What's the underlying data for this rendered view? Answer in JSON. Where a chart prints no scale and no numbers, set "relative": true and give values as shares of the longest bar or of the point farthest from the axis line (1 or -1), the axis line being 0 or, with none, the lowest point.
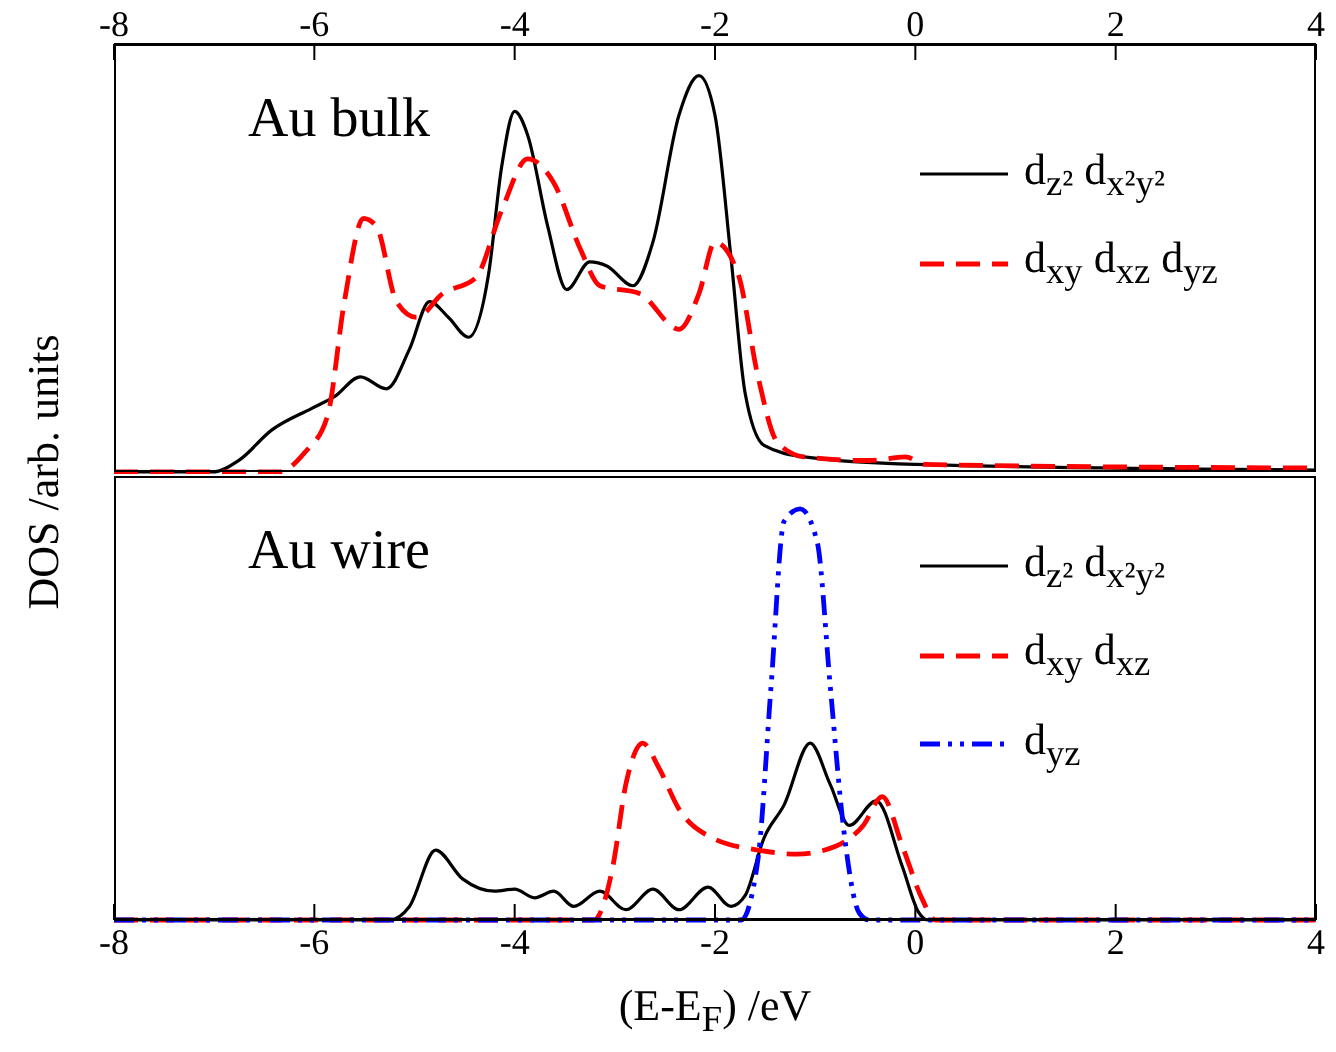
{
  "chart_data": [
    {
      "type": "line",
      "relative": true,
      "xlim": [
        -8,
        4
      ],
      "xticks": [
        -8,
        -6,
        -4,
        -2,
        0,
        2,
        4
      ],
      "tick_labels": "x",
      "ylabel": "DOS /arb. units",
      "legend": "top right",
      "grid": false,
      "marker": "none",
      "annotations": [
        "Au bulk"
      ],
      "series": [
        {
          "name": "d$_{z²}$ d$_{x²y²}$",
          "color": "#000000",
          "line_style": "solid",
          "x": [
            -8,
            -7.02,
            -6.75,
            -6.43,
            -6.03,
            -5.8,
            -5.54,
            -5.28,
            -5.05,
            -4.85,
            -4.66,
            -4.46,
            -4.26,
            -4.13,
            -4.0,
            -3.87,
            -3.67,
            -3.48,
            -3.25,
            -3.08,
            -2.82,
            -2.62,
            -2.36,
            -2.16,
            -2.0,
            -1.84,
            -1.7,
            -1.51,
            -1.11,
            0,
            4
          ],
          "values": [
            0,
            0,
            0.03,
            0.105,
            0.16,
            0.19,
            0.24,
            0.21,
            0.31,
            0.43,
            0.39,
            0.34,
            0.5,
            0.77,
            0.91,
            0.85,
            0.62,
            0.46,
            0.53,
            0.52,
            0.47,
            0.58,
            0.9,
            1,
            0.9,
            0.54,
            0.2,
            0.067,
            0.038,
            0.019,
            0.005
          ]
        },
        {
          "name": "d$_{xy}$ d$_{xz}$ d$_{yz}$",
          "color": "#ff0000",
          "line_style": "dashed",
          "x": [
            -8,
            -6.36,
            -6.1,
            -5.87,
            -5.7,
            -5.51,
            -5.38,
            -5.18,
            -4.98,
            -4.72,
            -4.39,
            -4.13,
            -3.87,
            -3.61,
            -3.34,
            -3.15,
            -2.75,
            -2.36,
            -2.16,
            -2.0,
            -1.77,
            -1.57,
            -1.38,
            -1.11,
            -0.46,
            -0.1,
            0.1,
            4
          ],
          "values": [
            0,
            0,
            0.048,
            0.14,
            0.43,
            0.64,
            0.62,
            0.43,
            0.39,
            0.45,
            0.49,
            0.66,
            0.79,
            0.73,
            0.56,
            0.47,
            0.45,
            0.36,
            0.45,
            0.58,
            0.5,
            0.24,
            0.076,
            0.038,
            0.029,
            0.038,
            0.019,
            0.01
          ]
        }
      ]
    },
    {
      "type": "line",
      "relative": true,
      "xlim": [
        -8,
        4
      ],
      "xticks": [
        -8,
        -6,
        -4,
        -2,
        0,
        2,
        4
      ],
      "tick_labels": "x",
      "xlabel": "(E-E$_{F}$) /eV",
      "legend": "top right",
      "grid": false,
      "marker": "none",
      "annotations": [
        "Au wire"
      ],
      "series": [
        {
          "name": "d$_{z²}$ d$_{x²y²}$",
          "color": "#000000",
          "line_style": "solid",
          "x": [
            -8,
            -5.25,
            -5.05,
            -4.79,
            -4.52,
            -4.2,
            -4.0,
            -3.8,
            -3.61,
            -3.41,
            -3.15,
            -2.89,
            -2.62,
            -2.36,
            -2.07,
            -1.84,
            -1.7,
            -1.51,
            -1.31,
            -1.05,
            -0.85,
            -0.66,
            -0.39,
            -0.13,
            0.03,
            0.13,
            4
          ],
          "values": [
            0,
            0,
            0.033,
            0.17,
            0.1,
            0.07,
            0.075,
            0.054,
            0.07,
            0.033,
            0.07,
            0.025,
            0.075,
            0.025,
            0.08,
            0.033,
            0.059,
            0.2,
            0.28,
            0.43,
            0.33,
            0.23,
            0.29,
            0.13,
            0.02,
            0,
            0
          ]
        },
        {
          "name": "d$_{xy}$ d$_{xz}$",
          "color": "#ff0000",
          "line_style": "dashed",
          "x": [
            -8,
            -3.21,
            -3.02,
            -2.89,
            -2.72,
            -2.56,
            -2.36,
            -2.03,
            -1.57,
            -1.18,
            -0.79,
            -0.52,
            -0.33,
            -0.13,
            0.07,
            0.2,
            4
          ],
          "values": [
            0,
            0,
            0.13,
            0.33,
            0.43,
            0.37,
            0.27,
            0.2,
            0.17,
            0.16,
            0.18,
            0.23,
            0.3,
            0.18,
            0.05,
            0,
            0
          ]
        },
        {
          "name": "d$_{yz}$",
          "color": "#0000ff",
          "line_style": "dashdot",
          "x": [
            -8,
            -1.74,
            -1.57,
            -1.44,
            -1.31,
            -1.15,
            -0.98,
            -0.85,
            -0.72,
            -0.56,
            -0.46,
            4
          ],
          "values": [
            0,
            0,
            0.15,
            0.57,
            0.97,
            1,
            0.92,
            0.57,
            0.23,
            0.017,
            0,
            0
          ]
        }
      ]
    }
  ]
}
